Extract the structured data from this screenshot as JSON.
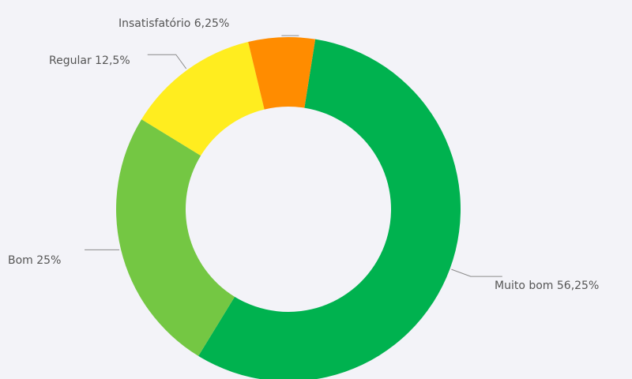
{
  "chart_data": {
    "type": "pie",
    "variant": "donut",
    "start_angle_deg": 9,
    "direction": "clockwise",
    "legend": "none",
    "slices": [
      {
        "label": "Muito bom",
        "value": 56.25,
        "display": "Muito bom 56,25%",
        "color": "#00b24f"
      },
      {
        "label": "Bom",
        "value": 25,
        "display": "Bom 25%",
        "color": "#74c743"
      },
      {
        "label": "Regular",
        "value": 12.5,
        "display": "Regular 12,5%",
        "color": "#ffed1f"
      },
      {
        "label": "Insatisfatório",
        "value": 6.25,
        "display": "Insatisfatório 6,25%",
        "color": "#ff8c00"
      }
    ]
  }
}
